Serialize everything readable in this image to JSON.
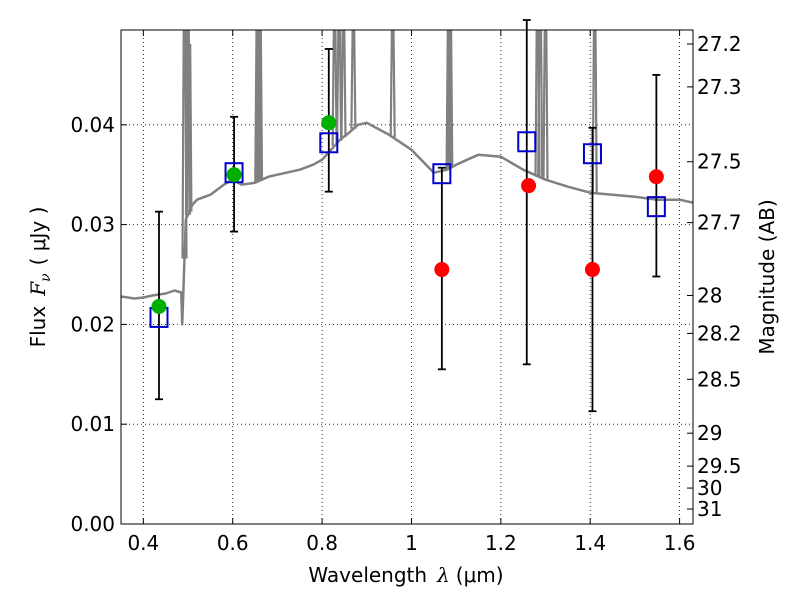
{
  "chart_data": {
    "type": "scatter",
    "xlabel": {
      "text": "Wavelength",
      "symbol": "λ",
      "unit": "(μm)"
    },
    "ylabel": {
      "text": "Flux",
      "symbol": "F",
      "sub": "ν",
      "unit": "( μJy )"
    },
    "y2label": "Magnitude (AB)",
    "xlim": [
      0.35,
      1.63
    ],
    "ylim": [
      0.0,
      0.0495
    ],
    "xticks": [
      0.4,
      0.6,
      0.8,
      1.0,
      1.2,
      1.4,
      1.6
    ],
    "xtick_labels": [
      "0.4",
      "0.6",
      "0.8",
      "1",
      "1.2",
      "1.4",
      "1.6"
    ],
    "yticks": [
      0.0,
      0.01,
      0.02,
      0.03,
      0.04
    ],
    "ytick_labels": [
      "0.00",
      "0.01",
      "0.02",
      "0.03",
      "0.04"
    ],
    "y2ticks": [
      {
        "label": "27.2",
        "flux": 0.0481
      },
      {
        "label": "27.3",
        "flux": 0.0438
      },
      {
        "label": "27.5",
        "flux": 0.0363
      },
      {
        "label": "27.7",
        "flux": 0.0302
      },
      {
        "label": "28",
        "flux": 0.0229
      },
      {
        "label": "28.2",
        "flux": 0.0191
      },
      {
        "label": "28.5",
        "flux": 0.0145
      },
      {
        "label": "29",
        "flux": 0.0091
      },
      {
        "label": "29.5",
        "flux": 0.0058
      },
      {
        "label": "30",
        "flux": 0.0036
      },
      {
        "label": "31",
        "flux": 0.0015
      }
    ],
    "grid": true,
    "colors": {
      "model": "#808080",
      "model_points": "#0000cc",
      "detections": "#00b000",
      "upper_limits": "#ff0000",
      "errorbar": "#000000"
    },
    "series": [
      {
        "kind": "line",
        "x": [
          0.35,
          0.38,
          0.4,
          0.42,
          0.45,
          0.47,
          0.485,
          0.487,
          0.49,
          0.495,
          0.5,
          0.51,
          0.52,
          0.55,
          0.58,
          0.6,
          0.62,
          0.65,
          0.68,
          0.7,
          0.72,
          0.75,
          0.78,
          0.8,
          0.82,
          0.84,
          0.86,
          0.88,
          0.9,
          0.95,
          1.0,
          1.05,
          1.08,
          1.1,
          1.15,
          1.2,
          1.25,
          1.3,
          1.35,
          1.4,
          1.45,
          1.5,
          1.55,
          1.6,
          1.63
        ],
        "y": [
          0.0228,
          0.0226,
          0.0227,
          0.0229,
          0.0231,
          0.0234,
          0.0232,
          0.02,
          0.024,
          0.0305,
          0.031,
          0.032,
          0.0325,
          0.033,
          0.034,
          0.0345,
          0.034,
          0.0342,
          0.0348,
          0.035,
          0.0352,
          0.0355,
          0.036,
          0.0365,
          0.0375,
          0.0385,
          0.0392,
          0.04,
          0.0402,
          0.039,
          0.0375,
          0.0352,
          0.0355,
          0.036,
          0.037,
          0.0368,
          0.0355,
          0.0345,
          0.0338,
          0.0332,
          0.033,
          0.0328,
          0.0325,
          0.0325,
          0.0322
        ]
      },
      {
        "kind": "spikes",
        "x": [
          0.492,
          0.5,
          0.503,
          0.655,
          0.659,
          0.661,
          0.828,
          0.838,
          0.848,
          0.87,
          0.958,
          1.083,
          1.087,
          1.282,
          1.288,
          1.3,
          1.41
        ],
        "y": [
          0.0495,
          0.0495,
          0.048,
          0.0495,
          0.0495,
          0.0495,
          0.0495,
          0.0495,
          0.0495,
          0.0495,
          0.0495,
          0.0495,
          0.0495,
          0.0495,
          0.0495,
          0.0495,
          0.0495
        ]
      },
      {
        "kind": "open-square",
        "x": [
          0.435,
          0.603,
          0.815,
          1.068,
          1.258,
          1.405,
          1.548
        ],
        "y": [
          0.0207,
          0.0352,
          0.0382,
          0.0351,
          0.0383,
          0.0371,
          0.0318
        ]
      },
      {
        "kind": "errorbar",
        "x": [
          0.435,
          0.603,
          0.815,
          1.068,
          1.258,
          1.405,
          1.548
        ],
        "low": [
          0.0125,
          0.0293,
          0.0333,
          0.0155,
          0.016,
          0.0113,
          0.0248
        ],
        "high": [
          0.0313,
          0.0408,
          0.0476,
          0.0357,
          0.0505,
          0.0397,
          0.045
        ]
      },
      {
        "kind": "filled-circle",
        "status": "detection",
        "x": [
          0.435,
          0.603,
          0.815
        ],
        "y": [
          0.0218,
          0.035,
          0.0402
        ]
      },
      {
        "kind": "filled-circle",
        "status": "upper-limit",
        "x": [
          1.068,
          1.262,
          1.405,
          1.548
        ],
        "y": [
          0.0255,
          0.0339,
          0.0255,
          0.0348
        ]
      }
    ]
  }
}
